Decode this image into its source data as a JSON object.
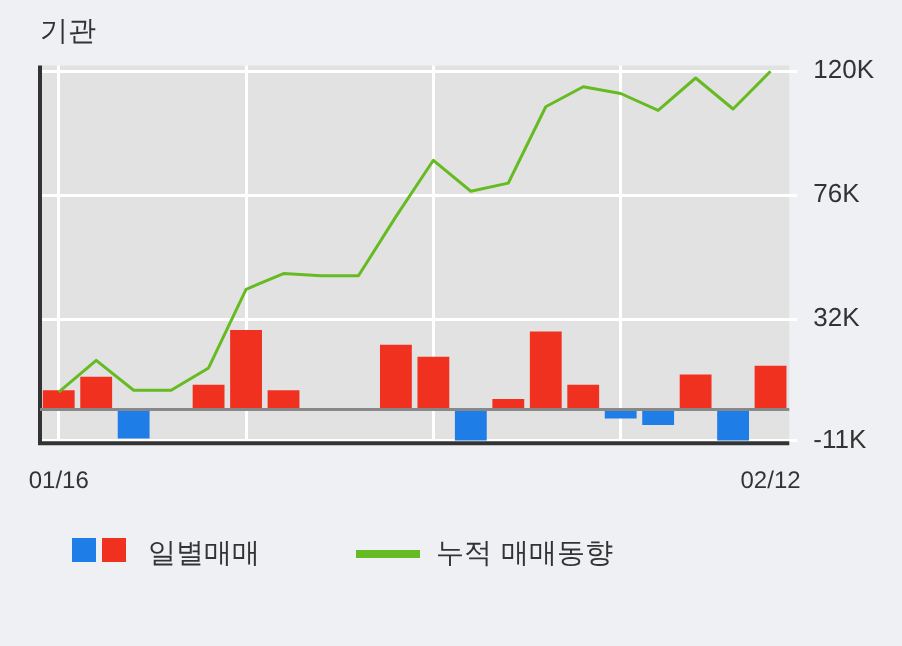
{
  "chart_data": {
    "type": "bar",
    "title": "기관",
    "categories": [
      "01/16",
      null,
      null,
      null,
      null,
      null,
      null,
      null,
      null,
      null,
      null,
      null,
      null,
      null,
      null,
      null,
      null,
      null,
      null,
      "02/12"
    ],
    "series": [
      {
        "name": "일별매매",
        "colors": [
          "#f0311f",
          "#f0311f",
          "#1f7de8",
          "#f0311f",
          "#f0311f",
          "#f0311f",
          "#f0311f",
          "#f0311f",
          "#f0311f",
          "#f0311f",
          "#f0311f",
          "#1f7de8",
          "#f0311f",
          "#f0311f",
          "#f0311f",
          "#1f7de8",
          "#1f7de8",
          "#f0311f",
          "#1f7de8",
          "#f0311f"
        ],
        "values": [
          6800,
          11600,
          -10300,
          0,
          8700,
          28200,
          6800,
          0,
          0,
          22900,
          18700,
          -11000,
          3700,
          27600,
          8700,
          -3200,
          -5500,
          12400,
          -11000,
          15500
        ]
      },
      {
        "name": "누적 매매동향",
        "type": "line",
        "color": "#66bb22",
        "values": [
          6100,
          17400,
          6800,
          6800,
          14700,
          42600,
          48200,
          47400,
          47400,
          68400,
          88400,
          77400,
          80300,
          107400,
          114500,
          112100,
          106100,
          117600,
          106600,
          120000
        ]
      }
    ],
    "ylim": [
      -12000,
      122000
    ],
    "yticks": [
      {
        "value": -11000,
        "label": "-11K"
      },
      {
        "value": 32000,
        "label": "32K"
      },
      {
        "value": 76000,
        "label": "76K"
      },
      {
        "value": 120000,
        "label": "120K"
      }
    ],
    "grid": true,
    "legend": "bottom",
    "marker": "none"
  }
}
